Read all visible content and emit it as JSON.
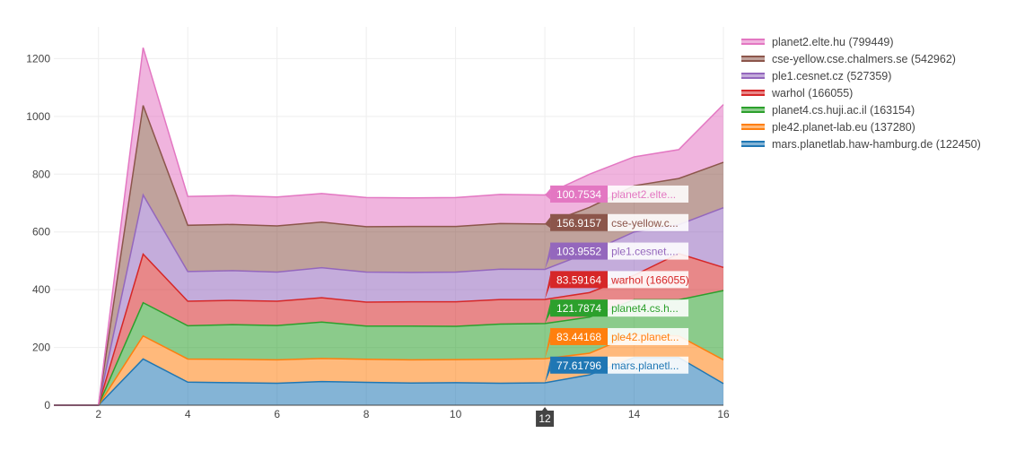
{
  "chart_data": {
    "type": "area",
    "stacked": true,
    "x": [
      1,
      2,
      3,
      4,
      5,
      6,
      7,
      8,
      9,
      10,
      11,
      12,
      13,
      14,
      15,
      16
    ],
    "xlim": [
      1,
      16
    ],
    "ylim": [
      0,
      1310
    ],
    "xticks": [
      2,
      4,
      6,
      8,
      10,
      12,
      14,
      16
    ],
    "yticks": [
      0,
      200,
      400,
      600,
      800,
      1000,
      1200
    ],
    "grid": true,
    "legend_position": "top-right",
    "series": [
      {
        "name": "mars.planetlab.haw-hamburg.de (122450)",
        "color": "#1f77b4",
        "fill": "rgba(31,119,180,0.55)",
        "values": [
          0,
          0,
          160,
          80,
          78,
          76,
          82,
          79,
          77,
          78,
          76,
          77.61796,
          105,
          165,
          165,
          75
        ]
      },
      {
        "name": "ple42.planet-lab.eu (137280)",
        "color": "#ff7f0e",
        "fill": "rgba(255,127,14,0.55)",
        "values": [
          0,
          0,
          80,
          80,
          81,
          81,
          80,
          80,
          80,
          80,
          83,
          83.44168,
          75,
          80,
          75,
          82
        ]
      },
      {
        "name": "planet4.cs.huji.ac.il (163154)",
        "color": "#2ca02c",
        "fill": "rgba(44,160,44,0.55)",
        "values": [
          0,
          0,
          115,
          115,
          120,
          119,
          126,
          115,
          117,
          115,
          122,
          121.7874,
          125,
          120,
          125,
          240
        ]
      },
      {
        "name": "warhol (166055)",
        "color": "#d62728",
        "fill": "rgba(214,39,40,0.55)",
        "values": [
          0,
          0,
          168,
          85,
          84,
          84,
          84,
          83,
          84,
          85,
          85,
          83.59164,
          85,
          85,
          160,
          80
        ]
      },
      {
        "name": "ple1.cesnet.cz (527359)",
        "color": "#9467bd",
        "fill": "rgba(148,103,189,0.55)",
        "values": [
          0,
          0,
          205,
          103,
          103,
          101,
          104,
          104,
          102,
          103,
          105,
          103.9552,
          140,
          150,
          100,
          207
        ]
      },
      {
        "name": "cse-yellow.cse.chalmers.se (542962)",
        "color": "#8c564b",
        "fill": "rgba(140,86,75,0.55)",
        "values": [
          0,
          0,
          310,
          160,
          160,
          160,
          158,
          157,
          159,
          158,
          158,
          156.9157,
          155,
          160,
          160,
          157
        ]
      },
      {
        "name": "planet2.elte.hu (799449)",
        "color": "#e377c2",
        "fill": "rgba(227,119,194,0.55)",
        "values": [
          0,
          0,
          200,
          100,
          100,
          100,
          99,
          101,
          99,
          100,
          101,
          100.7534,
          115,
          100,
          100,
          200
        ]
      }
    ],
    "hover": {
      "x_label": "12",
      "items": [
        {
          "value": "100.7534",
          "name": "planet2.elte...",
          "series": 6
        },
        {
          "value": "156.9157",
          "name": "cse-yellow.c...",
          "series": 5
        },
        {
          "value": "103.9552",
          "name": "ple1.cesnet....",
          "series": 4
        },
        {
          "value": "83.59164",
          "name": "warhol (166055)",
          "series": 3
        },
        {
          "value": "121.7874",
          "name": "planet4.cs.h...",
          "series": 2
        },
        {
          "value": "83.44168",
          "name": "ple42.planet...",
          "series": 1
        },
        {
          "value": "77.61796",
          "name": "mars.planetl...",
          "series": 0
        }
      ]
    }
  }
}
